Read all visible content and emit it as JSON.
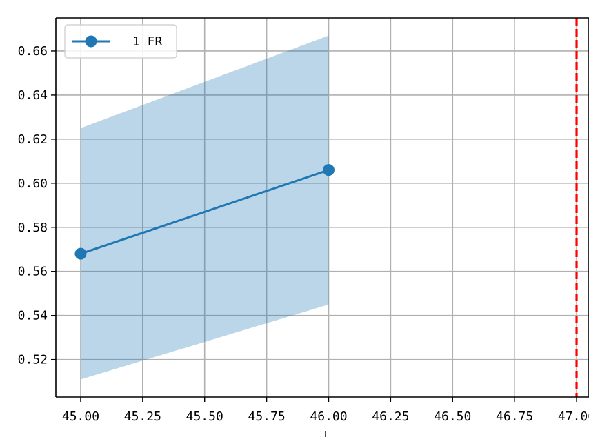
{
  "chart_data": {
    "type": "line",
    "title": "",
    "xlabel": "",
    "ylabel": "",
    "xlim": [
      44.9,
      47.05
    ],
    "ylim": [
      0.503,
      0.675
    ],
    "grid": true,
    "legend_position": "top-left",
    "x_ticks": [
      {
        "value": 45.0,
        "label": "45.00"
      },
      {
        "value": 45.25,
        "label": "45.25"
      },
      {
        "value": 45.5,
        "label": "45.50"
      },
      {
        "value": 45.75,
        "label": "45.75"
      },
      {
        "value": 46.0,
        "label": "46.00"
      },
      {
        "value": 46.25,
        "label": "46.25"
      },
      {
        "value": 46.5,
        "label": "46.50"
      },
      {
        "value": 46.75,
        "label": "46.75"
      },
      {
        "value": 47.0,
        "label": "47.00"
      }
    ],
    "y_ticks": [
      {
        "value": 0.52,
        "label": "0.52"
      },
      {
        "value": 0.54,
        "label": "0.54"
      },
      {
        "value": 0.56,
        "label": "0.56"
      },
      {
        "value": 0.58,
        "label": "0.58"
      },
      {
        "value": 0.6,
        "label": "0.60"
      },
      {
        "value": 0.62,
        "label": "0.62"
      },
      {
        "value": 0.64,
        "label": "0.64"
      },
      {
        "value": 0.66,
        "label": "0.66"
      }
    ],
    "series": [
      {
        "name": "1 FR",
        "color": "#1f77b4",
        "marker": "circle",
        "x": [
          45.0,
          46.0
        ],
        "y": [
          0.568,
          0.606
        ],
        "band_lower": [
          0.511,
          0.545
        ],
        "band_upper": [
          0.625,
          0.667
        ],
        "band_color": "#1f77b4",
        "band_opacity": 0.3
      }
    ],
    "vertical_lines": [
      {
        "x": 47.0,
        "color": "#ff0000",
        "style": "dashed"
      }
    ],
    "colors": {
      "grid": "#b0b0b0",
      "axis": "#000000"
    }
  }
}
